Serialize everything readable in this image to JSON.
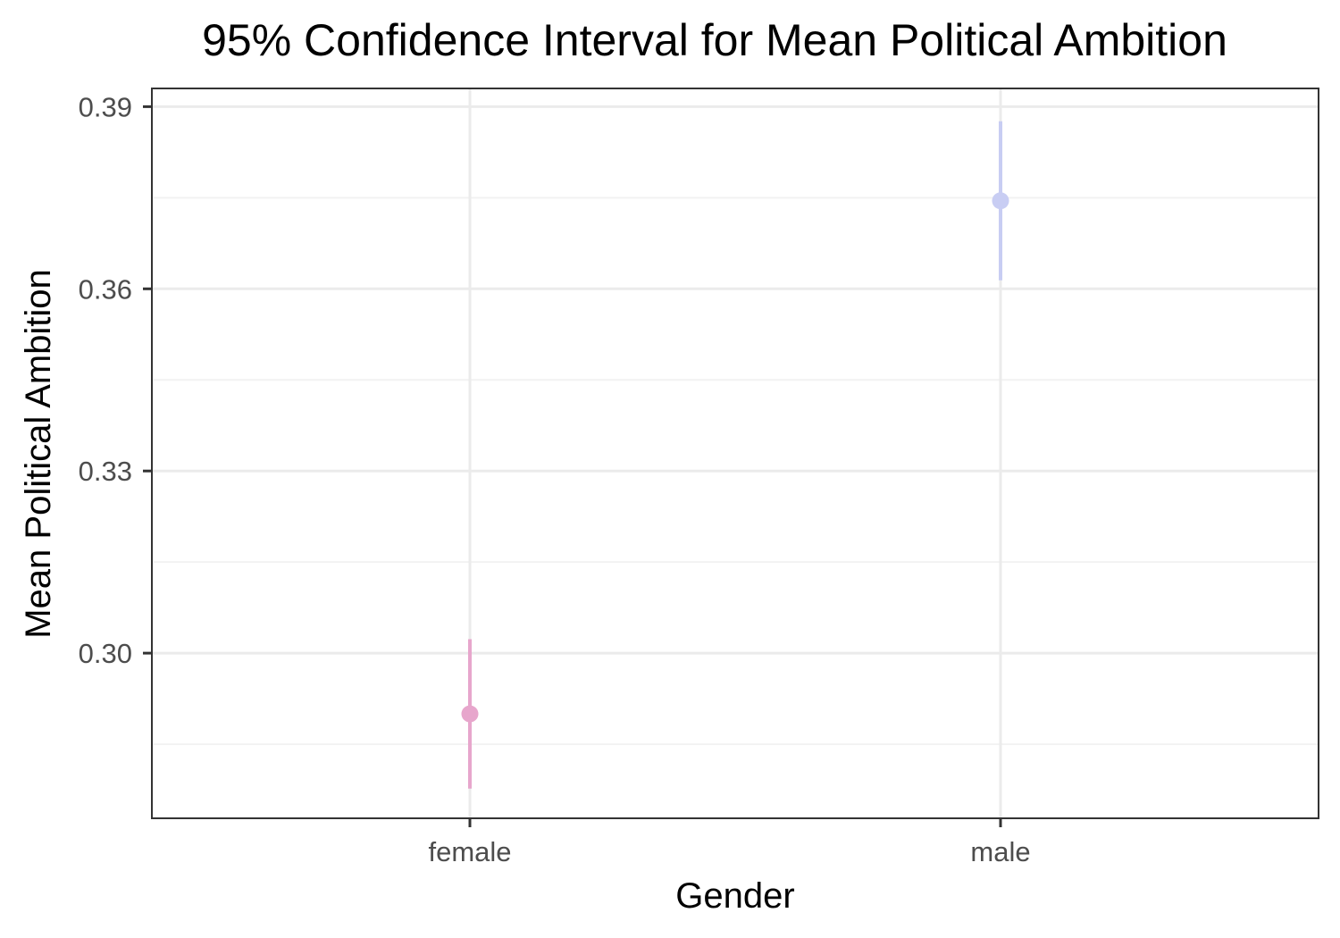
{
  "chart_data": {
    "type": "scatter",
    "variant": "pointrange",
    "title": "95% Confidence Interval for Mean Political Ambition",
    "xlabel": "Gender",
    "ylabel": "Mean Political Ambition",
    "categories": [
      "female",
      "male"
    ],
    "series": [
      {
        "points": [
          {
            "x": "female",
            "y": 0.29,
            "lower": 0.2777,
            "upper": 0.3023,
            "color": "#e7a6cc"
          },
          {
            "x": "male",
            "y": 0.3745,
            "lower": 0.3614,
            "upper": 0.3876,
            "color": "#c8cdf3"
          }
        ]
      }
    ],
    "ylim": [
      0.2728,
      0.393
    ],
    "yticks": [
      0.3,
      0.33,
      0.36,
      0.39
    ],
    "ytick_labels": [
      "0.30",
      "0.33",
      "0.36",
      "0.39"
    ],
    "grid": true,
    "legend": "none",
    "colors": {
      "panel_border": "#333333",
      "grid_major": "#ebebeb",
      "grid_minor": "#f2f2f2",
      "tick_text": "#4d4d4d"
    }
  }
}
